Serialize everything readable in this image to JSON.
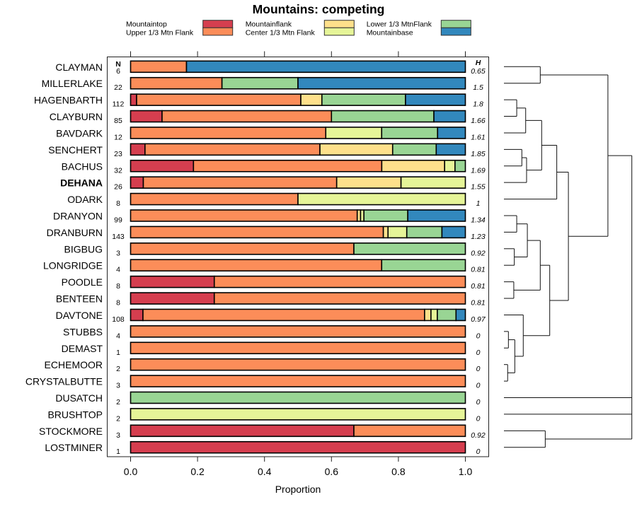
{
  "chart_data": {
    "type": "bar",
    "subtype": "stacked-horizontal-proportion-with-dendrogram",
    "title": "Mountains: competing",
    "xlabel": "Proportion",
    "ylabel": "",
    "xlim": [
      0,
      1
    ],
    "xticks": [
      0,
      0.2,
      0.4,
      0.6,
      0.8,
      1.0
    ],
    "xtick_labels": [
      "0.0",
      "0.2",
      "0.4",
      "0.6",
      "0.8",
      "1.0"
    ],
    "grid": false,
    "legend_position": "top",
    "n_header": "N",
    "h_header": "H",
    "categories": [
      {
        "name": "Mountaintop",
        "color": "#D53E4F"
      },
      {
        "name": "Upper 1/3 Mtn Flank",
        "color": "#FC8D59"
      },
      {
        "name": "Mountainflank",
        "color": "#FEE08B"
      },
      {
        "name": "Center 1/3 Mtn Flank",
        "color": "#E6F598"
      },
      {
        "name": "Lower 1/3 MtnFlank",
        "color": "#99D594"
      },
      {
        "name": "Mountainbase",
        "color": "#3288BD"
      }
    ],
    "rows": [
      {
        "site": "CLAYMAN",
        "n": 6,
        "h": 0.65,
        "bold": false,
        "values": [
          0,
          0.167,
          0,
          0,
          0,
          0.833
        ]
      },
      {
        "site": "MILLERLAKE",
        "n": 22,
        "h": 1.5,
        "bold": false,
        "values": [
          0,
          0.273,
          0,
          0,
          0.227,
          0.5
        ]
      },
      {
        "site": "HAGENBARTH",
        "n": 112,
        "h": 1.8,
        "bold": false,
        "values": [
          0.018,
          0.491,
          0.063,
          0,
          0.25,
          0.179
        ]
      },
      {
        "site": "CLAYBURN",
        "n": 85,
        "h": 1.66,
        "bold": false,
        "values": [
          0.094,
          0.506,
          0,
          0,
          0.306,
          0.094
        ]
      },
      {
        "site": "BAVDARK",
        "n": 12,
        "h": 1.61,
        "bold": false,
        "values": [
          0,
          0.583,
          0,
          0.167,
          0.167,
          0.083
        ]
      },
      {
        "site": "SENCHERT",
        "n": 23,
        "h": 1.85,
        "bold": false,
        "values": [
          0.043,
          0.522,
          0.217,
          0,
          0.13,
          0.087
        ]
      },
      {
        "site": "BACHUS",
        "n": 32,
        "h": 1.69,
        "bold": false,
        "values": [
          0.188,
          0.563,
          0.188,
          0.031,
          0.031,
          0
        ]
      },
      {
        "site": "DEHANA",
        "n": 26,
        "h": 1.55,
        "bold": true,
        "values": [
          0.038,
          0.577,
          0.192,
          0.192,
          0,
          0
        ]
      },
      {
        "site": "ODARK",
        "n": 8,
        "h": 1,
        "bold": false,
        "values": [
          0,
          0.5,
          0,
          0.5,
          0,
          0
        ]
      },
      {
        "site": "DRANYON",
        "n": 99,
        "h": 1.34,
        "bold": false,
        "values": [
          0,
          0.677,
          0.01,
          0.01,
          0.131,
          0.172
        ]
      },
      {
        "site": "DRANBURN",
        "n": 143,
        "h": 1.23,
        "bold": false,
        "values": [
          0,
          0.755,
          0.014,
          0.056,
          0.105,
          0.07
        ]
      },
      {
        "site": "BIGBUG",
        "n": 3,
        "h": 0.92,
        "bold": false,
        "values": [
          0,
          0.667,
          0,
          0,
          0.333,
          0
        ]
      },
      {
        "site": "LONGRIDGE",
        "n": 4,
        "h": 0.81,
        "bold": false,
        "values": [
          0,
          0.75,
          0,
          0,
          0.25,
          0
        ]
      },
      {
        "site": "POODLE",
        "n": 8,
        "h": 0.81,
        "bold": false,
        "values": [
          0.25,
          0.75,
          0,
          0,
          0,
          0
        ]
      },
      {
        "site": "BENTEEN",
        "n": 8,
        "h": 0.81,
        "bold": false,
        "values": [
          0.25,
          0.75,
          0,
          0,
          0,
          0
        ]
      },
      {
        "site": "DAVTONE",
        "n": 108,
        "h": 0.97,
        "bold": false,
        "values": [
          0.037,
          0.843,
          0.019,
          0.019,
          0.056,
          0.028
        ]
      },
      {
        "site": "STUBBS",
        "n": 4,
        "h": 0,
        "bold": false,
        "values": [
          0,
          1,
          0,
          0,
          0,
          0
        ]
      },
      {
        "site": "DEMAST",
        "n": 1,
        "h": 0,
        "bold": false,
        "values": [
          0,
          1,
          0,
          0,
          0,
          0
        ]
      },
      {
        "site": "ECHEMOOR",
        "n": 2,
        "h": 0,
        "bold": false,
        "values": [
          0,
          1,
          0,
          0,
          0,
          0
        ]
      },
      {
        "site": "CRYSTALBUTTE",
        "n": 3,
        "h": 0,
        "bold": false,
        "values": [
          0,
          1,
          0,
          0,
          0,
          0
        ]
      },
      {
        "site": "DUSATCH",
        "n": 2,
        "h": 0,
        "bold": false,
        "values": [
          0,
          0,
          0,
          0,
          1,
          0
        ]
      },
      {
        "site": "BRUSHTOP",
        "n": 2,
        "h": 0,
        "bold": false,
        "values": [
          0,
          0,
          0,
          1,
          0,
          0
        ]
      },
      {
        "site": "STOCKMORE",
        "n": 3,
        "h": 0.92,
        "bold": false,
        "values": [
          0.667,
          0.333,
          0,
          0,
          0,
          0
        ]
      },
      {
        "site": "LOSTMINER",
        "n": 1,
        "h": 0,
        "bold": false,
        "values": [
          1,
          0,
          0,
          0,
          0,
          0
        ]
      }
    ],
    "dendrogram": {
      "height": 1.0,
      "children": [
        {
          "height": 0.813,
          "children": [
            {
              "height": 0.284,
              "children": [
                {
                  "leaf": "CLAYMAN"
                },
                {
                  "leaf": "MILLERLAKE"
                }
              ]
            },
            {
              "height": 0.504,
              "children": [
                {
                  "height": 0.413,
                  "children": [
                    {
                      "height": 0.295,
                      "children": [
                        {
                          "height": 0.17,
                          "children": [
                            {
                              "height": 0.1,
                              "children": [
                                {
                                  "leaf": "HAGENBARTH"
                                },
                                {
                                  "leaf": "CLAYBURN"
                                }
                              ]
                            },
                            {
                              "leaf": "BAVDARK"
                            }
                          ]
                        },
                        {
                          "height": 0.177,
                          "children": [
                            {
                              "height": 0.14,
                              "children": [
                                {
                                  "leaf": "SENCHERT"
                                },
                                {
                                  "leaf": "BACHUS"
                                }
                              ]
                            },
                            {
                              "leaf": "DEHANA"
                            }
                          ]
                        }
                      ]
                    },
                    {
                      "leaf": "ODARK"
                    }
                  ]
                },
                {
                  "height": 0.358,
                  "children": [
                    {
                      "height": 0.284,
                      "children": [
                        {
                          "height": 0.183,
                          "children": [
                            {
                              "height": 0.1,
                              "children": [
                                {
                                  "leaf": "DRANYON"
                                },
                                {
                                  "leaf": "DRANBURN"
                                }
                              ]
                            },
                            {
                              "height": 0.081,
                              "children": [
                                {
                                  "leaf": "BIGBUG"
                                },
                                {
                                  "leaf": "LONGRIDGE"
                                }
                              ]
                            }
                          ]
                        },
                        {
                          "height": 0.077,
                          "children": [
                            {
                              "leaf": "POODLE"
                            },
                            {
                              "leaf": "BENTEEN"
                            }
                          ]
                        }
                      ]
                    },
                    {
                      "height": 0.151,
                      "children": [
                        {
                          "leaf": "DAVTONE"
                        },
                        {
                          "height": 0.085,
                          "children": [
                            {
                              "height": 0.035,
                              "children": [
                                {
                                  "leaf": "STUBBS"
                                },
                                {
                                  "leaf": "DEMAST"
                                }
                              ]
                            },
                            {
                              "height": 0.029,
                              "children": [
                                {
                                  "leaf": "ECHEMOOR"
                                },
                                {
                                  "leaf": "CRYSTALBUTTE"
                                }
                              ]
                            }
                          ]
                        }
                      ]
                    }
                  ]
                }
              ]
            }
          ]
        },
        {
          "leaf": "DUSATCH"
        },
        {
          "leaf": "BRUSHTOP"
        },
        {
          "height": 0.323,
          "children": [
            {
              "leaf": "STOCKMORE"
            },
            {
              "leaf": "LOSTMINER"
            }
          ]
        }
      ]
    }
  }
}
